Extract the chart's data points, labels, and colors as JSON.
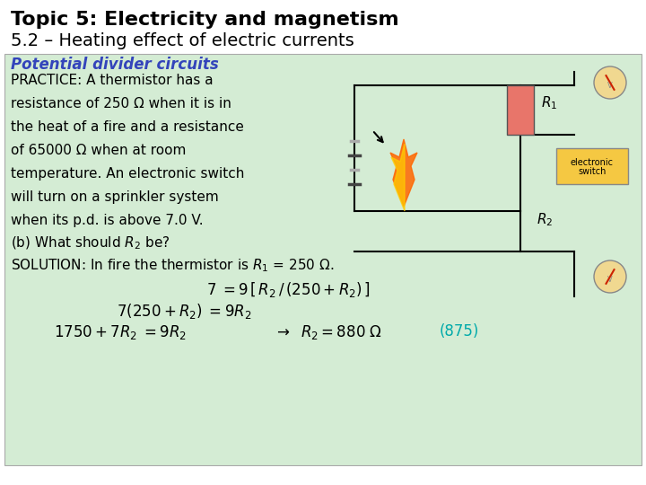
{
  "title_line1": "Topic 5: Electricity and magnetism",
  "title_line2": "5.2 – Heating effect of electric currents",
  "subtitle": "Potential divider circuits",
  "subtitle_color": "#3344bb",
  "background_color": "#ffffff",
  "green_box_color": "#d4ecd4",
  "green_box_border": "#aaaaaa",
  "body_text": [
    "PRACTICE: A thermistor has a",
    "resistance of 250 Ω when it is in",
    "the heat of a fire and a resistance",
    "of 65000 Ω when at room",
    "temperature. An electronic switch",
    "will turn on a sprinkler system",
    "when its p.d. is above 7.0 V."
  ],
  "highlight_color": "#00aaaa",
  "title1_fontsize": 16,
  "title2_fontsize": 14,
  "subtitle_fontsize": 12,
  "body_fontsize": 11,
  "eq_fontsize": 11
}
